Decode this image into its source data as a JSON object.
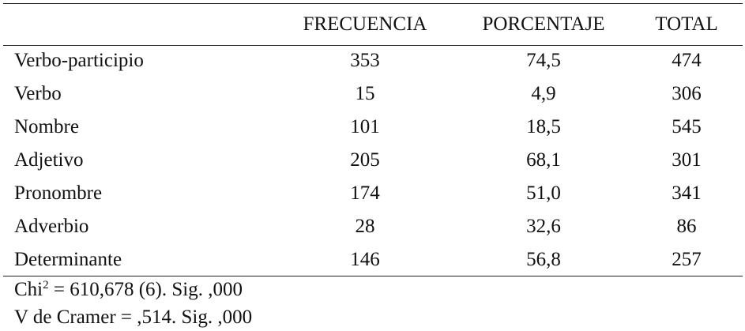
{
  "table": {
    "header": [
      "FRECUENCIA",
      "PORCENTAJE",
      "TOTAL"
    ],
    "rows": [
      [
        "Verbo-participio",
        "353",
        "74,5",
        "474"
      ],
      [
        "Verbo",
        "15",
        "4,9",
        "306"
      ],
      [
        "Nombre",
        "101",
        "18,5",
        "545"
      ],
      [
        "Adjetivo",
        "205",
        "68,1",
        "301"
      ],
      [
        "Pronombre",
        "174",
        "51,0",
        "341"
      ],
      [
        "Adverbio",
        "28",
        "32,6",
        "86"
      ],
      [
        "Determinante",
        "146",
        "56,8",
        "257"
      ]
    ]
  },
  "notes": {
    "chi": {
      "prefix": "Chi",
      "superscript": "2",
      "rest": " = 610,678 (6). Sig. ,000"
    },
    "cramer": "V de Cramer = ,514. Sig. ,000"
  }
}
